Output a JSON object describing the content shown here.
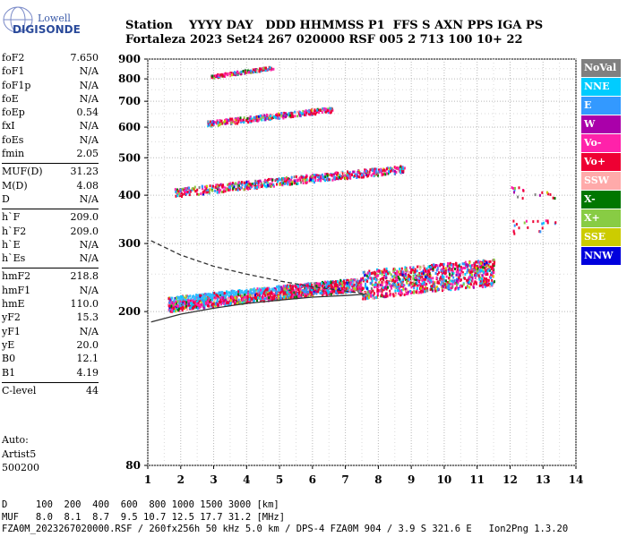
{
  "logo": {
    "top": "Lowell",
    "bottom": "DIGISONDE"
  },
  "header": {
    "row1": "Station    YYYY DAY   DDD HHMMSS P1  FFS S AXN PPS IGA PS",
    "row2": "Fortaleza 2023 Set24 267 020000 RSF 005 2 713 100 10+ 22"
  },
  "params": [
    {
      "group": [
        {
          "name": "foF2",
          "value": "7.650"
        },
        {
          "name": "foF1",
          "value": "N/A"
        },
        {
          "name": "foF1p",
          "value": "N/A"
        },
        {
          "name": "foE",
          "value": "N/A"
        },
        {
          "name": "foEp",
          "value": "0.54"
        },
        {
          "name": "fxI",
          "value": "N/A"
        },
        {
          "name": "foEs",
          "value": "N/A"
        },
        {
          "name": "fmin",
          "value": "2.05"
        }
      ]
    },
    {
      "group": [
        {
          "name": "MUF(D)",
          "value": "31.23"
        },
        {
          "name": "M(D)",
          "value": "4.08"
        },
        {
          "name": "D",
          "value": "N/A"
        }
      ]
    },
    {
      "group": [
        {
          "name": "h`F",
          "value": "209.0"
        },
        {
          "name": "h`F2",
          "value": "209.0"
        },
        {
          "name": "h`E",
          "value": "N/A"
        },
        {
          "name": "h`Es",
          "value": "N/A"
        }
      ]
    },
    {
      "group": [
        {
          "name": "hmF2",
          "value": "218.8"
        },
        {
          "name": "hmF1",
          "value": "N/A"
        },
        {
          "name": "hmE",
          "value": "110.0"
        },
        {
          "name": "yF2",
          "value": "15.3"
        },
        {
          "name": "yF1",
          "value": "N/A"
        },
        {
          "name": "yE",
          "value": "20.0"
        },
        {
          "name": "B0",
          "value": "12.1"
        },
        {
          "name": "B1",
          "value": "4.19"
        }
      ]
    },
    {
      "group": [
        {
          "name": "C-level",
          "value": "44"
        }
      ]
    }
  ],
  "auto": {
    "line1": "Auto:",
    "line2": "Artist5",
    "line3": "500200"
  },
  "legend": [
    {
      "label": "NoVal",
      "color": "#808080"
    },
    {
      "label": "NNE",
      "color": "#00ccff"
    },
    {
      "label": "E",
      "color": "#3399ff"
    },
    {
      "label": "W",
      "color": "#aa00aa"
    },
    {
      "label": "Vo-",
      "color": "#ff22aa"
    },
    {
      "label": "Vo+",
      "color": "#ee0033"
    },
    {
      "label": "SSW",
      "color": "#ffaaaa"
    },
    {
      "label": "X-",
      "color": "#007700"
    },
    {
      "label": "X+",
      "color": "#88cc44"
    },
    {
      "label": "SSE",
      "color": "#cccc00"
    },
    {
      "label": "NNW",
      "color": "#0000dd"
    }
  ],
  "footer": {
    "line1": "D     100  200  400  600  800 1000 1500 3000 [km]",
    "line2": "MUF   8.0  8.1  8.7  9.5 10.7 12.5 17.7 31.2 [MHz]",
    "line3": "FZA0M_2023267020000.RSF / 260fx256h 50 kHz 5.0 km / DPS-4 FZA0M 904 / 3.9 S 321.6 E   Ion2Png 1.3.20"
  },
  "chart_data": {
    "type": "scatter",
    "xlim": [
      1,
      14
    ],
    "ylim": [
      80,
      900
    ],
    "xticks": [
      "1",
      "2",
      "3",
      "4",
      "5",
      "6",
      "7",
      "8",
      "9",
      "10",
      "11",
      "12",
      "13",
      "14"
    ],
    "yticks": [
      "80",
      "200",
      "300",
      "400",
      "500",
      "600",
      "700",
      "800",
      "900"
    ],
    "grid": true,
    "scale_y": "log",
    "bands": [
      {
        "name": "F-trace",
        "x": [
          1.6,
          11.5
        ],
        "y_start": 210,
        "y_end": 255,
        "spread": 18
      },
      {
        "name": "2F-trace",
        "x": [
          1.8,
          8.8
        ],
        "y_start": 408,
        "y_end": 470,
        "spread": 20
      },
      {
        "name": "3F-trace",
        "x": [
          2.8,
          6.6
        ],
        "y_start": 615,
        "y_end": 670,
        "spread": 20
      },
      {
        "name": "4F-trace",
        "x": [
          2.9,
          4.8
        ],
        "y_start": 815,
        "y_end": 860,
        "spread": 15
      }
    ],
    "profile_dashed": {
      "x": [
        1.1,
        2,
        3,
        4,
        5,
        6,
        7,
        7.65
      ],
      "y": [
        305,
        280,
        262,
        250,
        240,
        232,
        226,
        222
      ]
    },
    "profile_solid": {
      "x": [
        1.1,
        2,
        3,
        4,
        5,
        6,
        7,
        7.65
      ],
      "y": [
        188,
        197,
        204,
        210,
        214,
        218,
        220,
        222
      ]
    }
  }
}
